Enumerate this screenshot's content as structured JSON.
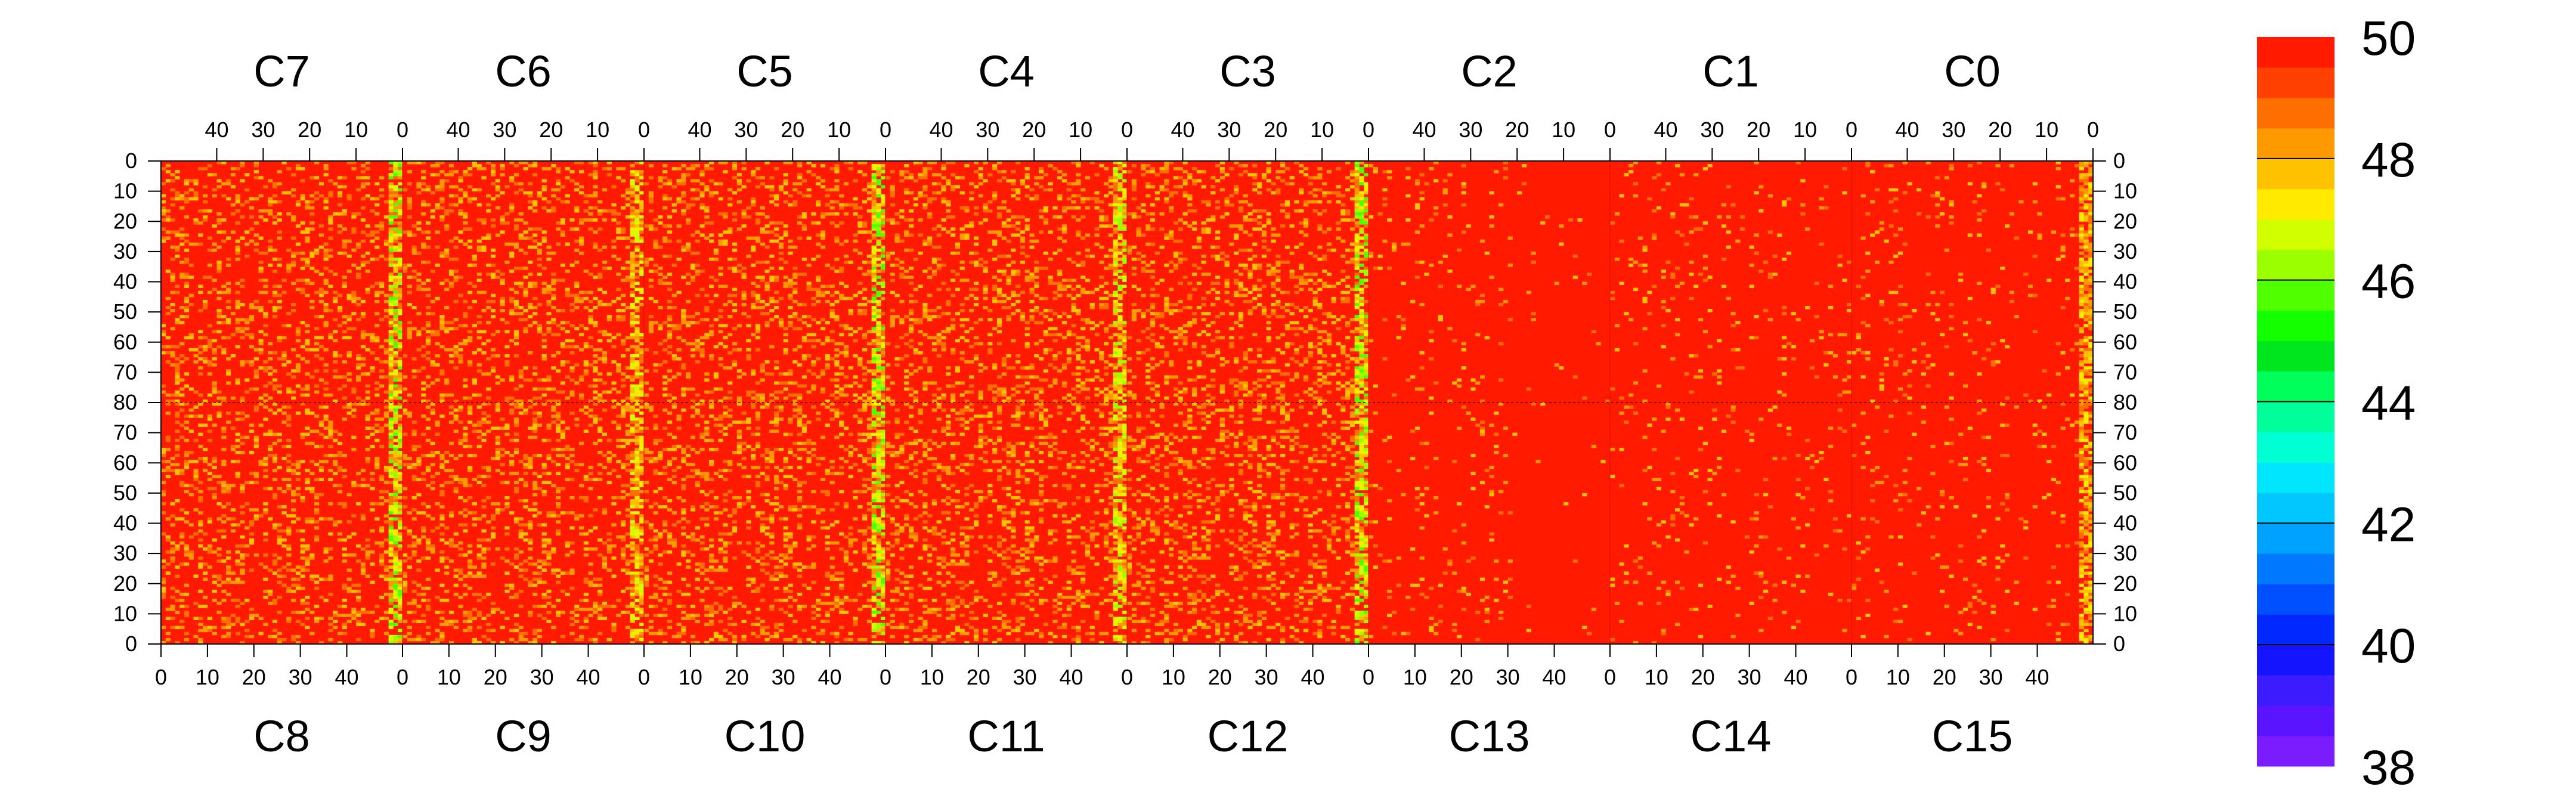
{
  "chart_data": {
    "type": "heatmap",
    "title": "",
    "xlabel": "",
    "ylabel": "",
    "colormap": "rainbow",
    "zlim": [
      38,
      50
    ],
    "colorbar_ticks": [
      "50",
      "48",
      "46",
      "44",
      "42",
      "40",
      "38"
    ],
    "top_chip_labels": [
      "C7",
      "C6",
      "C5",
      "C4",
      "C3",
      "C2",
      "C1",
      "C0"
    ],
    "bottom_chip_labels": [
      "C8",
      "C9",
      "C10",
      "C11",
      "C12",
      "C13",
      "C14",
      "C15"
    ],
    "top_x_ticks": [
      "40",
      "30",
      "20",
      "10",
      "0"
    ],
    "bottom_x_ticks": [
      "0",
      "10",
      "20",
      "30",
      "40"
    ],
    "y_ticks": [
      "0",
      "10",
      "20",
      "30",
      "40",
      "50",
      "60",
      "70",
      "80",
      "70",
      "60",
      "50",
      "40",
      "30",
      "20",
      "10",
      "0"
    ],
    "columns_per_chip": 52,
    "rows_per_half": 80,
    "grid": false,
    "hot_columns": [
      {
        "top_chip": "C7",
        "bottom_chip": "C8",
        "edge": "right",
        "min_value": 45.5
      },
      {
        "top_chip": "C6",
        "bottom_chip": "C9",
        "edge": "right",
        "min_value": 46.5
      },
      {
        "top_chip": "C5",
        "bottom_chip": "C10",
        "edge": "right",
        "min_value": 45.5
      },
      {
        "top_chip": "C4",
        "bottom_chip": "C11",
        "edge": "right",
        "min_value": 46.0
      },
      {
        "top_chip": "C3",
        "bottom_chip": "C12",
        "edge": "right",
        "min_value": 45.5
      },
      {
        "top_chip": "C0",
        "bottom_chip": "C15",
        "edge": "right",
        "min_value": 47.0
      }
    ]
  }
}
